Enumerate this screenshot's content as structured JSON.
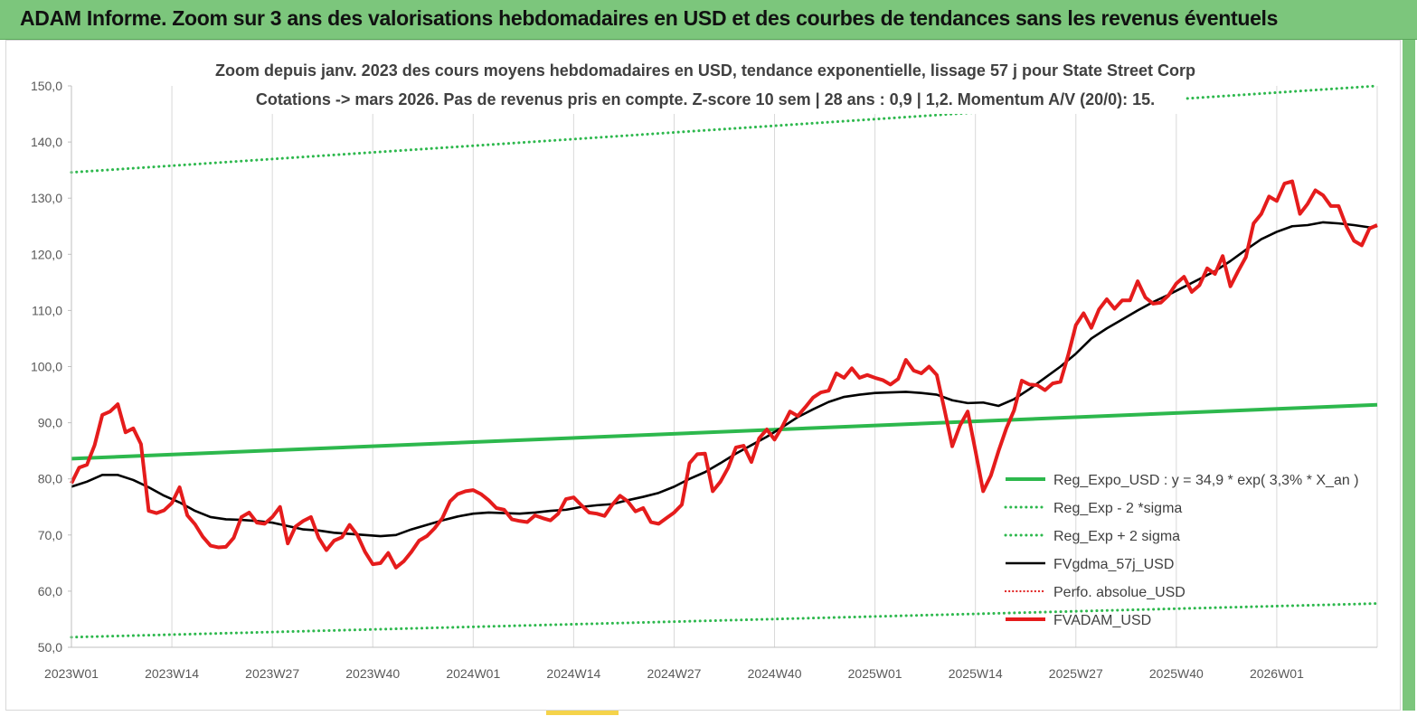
{
  "banner": {
    "title": "ADAM Informe. Zoom sur 3 ans des valorisations hebdomadaires en USD et des courbes de tendances sans les revenus éventuels",
    "background": "#7cc67c"
  },
  "chart_data": {
    "type": "line",
    "subtitle_line1": "Zoom depuis janv. 2023 des cours moyens hebdomadaires en USD, tendance exponentielle, lissage 57 j pour State Street Corp",
    "subtitle_line2": "Cotations -> mars 2026. Pas de revenus pris en compte. Z-score 10 sem  | 28 ans : 0,9 | 1,2. Momentum A/V (20/0): 15.",
    "xlabel": "",
    "ylabel": "",
    "ylim": [
      50,
      150
    ],
    "yticks": [
      "50,0",
      "60,0",
      "70,0",
      "80,0",
      "90,0",
      "100,0",
      "110,0",
      "120,0",
      "130,0",
      "140,0",
      "150,0"
    ],
    "xticks": [
      {
        "label": "2023W01",
        "week": 0
      },
      {
        "label": "2023W14",
        "week": 13
      },
      {
        "label": "2023W27",
        "week": 26
      },
      {
        "label": "2023W40",
        "week": 39
      },
      {
        "label": "2024W01",
        "week": 52
      },
      {
        "label": "2024W14",
        "week": 65
      },
      {
        "label": "2024W27",
        "week": 78
      },
      {
        "label": "2024W40",
        "week": 91
      },
      {
        "label": "2025W01",
        "week": 104
      },
      {
        "label": "2025W14",
        "week": 117
      },
      {
        "label": "2025W27",
        "week": 130
      },
      {
        "label": "2025W40",
        "week": 143
      },
      {
        "label": "2026W01",
        "week": 156
      }
    ],
    "x_max_week": 169,
    "grid": "vertical",
    "legend_placement": "bottom-right",
    "series": [
      {
        "name": "Reg_Expo_USD : y = 34,9 * exp( 3,3% *  X_an )",
        "color": "#2db84d",
        "style": "solid-thick",
        "points": [
          [
            0,
            83.6
          ],
          [
            169,
            93.2
          ]
        ]
      },
      {
        "name": "Reg_Exp - 2 *sigma",
        "color": "#2db84d",
        "style": "dotted",
        "points": [
          [
            0,
            51.8
          ],
          [
            169,
            57.8
          ]
        ]
      },
      {
        "name": "Reg_Exp + 2 sigma",
        "color": "#2db84d",
        "style": "dotted",
        "points": [
          [
            0,
            134.6
          ],
          [
            169,
            150.0
          ]
        ]
      },
      {
        "name": "FVgdma_57j_USD",
        "color": "#000000",
        "style": "solid",
        "points": [
          [
            0,
            78.6
          ],
          [
            2,
            79.5
          ],
          [
            4,
            80.7
          ],
          [
            6,
            80.7
          ],
          [
            8,
            79.8
          ],
          [
            10,
            78.5
          ],
          [
            12,
            77.0
          ],
          [
            14,
            75.8
          ],
          [
            16,
            74.3
          ],
          [
            18,
            73.2
          ],
          [
            20,
            72.8
          ],
          [
            22,
            72.7
          ],
          [
            24,
            72.5
          ],
          [
            26,
            72.2
          ],
          [
            28,
            71.6
          ],
          [
            30,
            71.0
          ],
          [
            32,
            70.8
          ],
          [
            34,
            70.4
          ],
          [
            36,
            70.2
          ],
          [
            38,
            70.0
          ],
          [
            40,
            69.8
          ],
          [
            42,
            70.0
          ],
          [
            44,
            71.0
          ],
          [
            46,
            71.8
          ],
          [
            48,
            72.6
          ],
          [
            50,
            73.3
          ],
          [
            52,
            73.8
          ],
          [
            54,
            74.0
          ],
          [
            56,
            73.9
          ],
          [
            58,
            73.8
          ],
          [
            60,
            74.0
          ],
          [
            62,
            74.3
          ],
          [
            64,
            74.5
          ],
          [
            66,
            75.0
          ],
          [
            68,
            75.3
          ],
          [
            70,
            75.5
          ],
          [
            72,
            76.2
          ],
          [
            74,
            76.8
          ],
          [
            76,
            77.5
          ],
          [
            78,
            78.6
          ],
          [
            80,
            80.0
          ],
          [
            82,
            81.2
          ],
          [
            84,
            82.8
          ],
          [
            86,
            84.5
          ],
          [
            88,
            86.0
          ],
          [
            90,
            87.5
          ],
          [
            92,
            89.2
          ],
          [
            94,
            91.0
          ],
          [
            96,
            92.4
          ],
          [
            98,
            93.7
          ],
          [
            100,
            94.6
          ],
          [
            102,
            95.0
          ],
          [
            104,
            95.3
          ],
          [
            106,
            95.4
          ],
          [
            108,
            95.5
          ],
          [
            110,
            95.3
          ],
          [
            112,
            95.0
          ],
          [
            114,
            94.0
          ],
          [
            116,
            93.5
          ],
          [
            118,
            93.6
          ],
          [
            120,
            93.0
          ],
          [
            122,
            94.2
          ],
          [
            124,
            96.0
          ],
          [
            126,
            98.0
          ],
          [
            128,
            100.0
          ],
          [
            130,
            102.3
          ],
          [
            132,
            105.0
          ],
          [
            134,
            106.8
          ],
          [
            136,
            108.4
          ],
          [
            138,
            110.0
          ],
          [
            140,
            111.5
          ],
          [
            142,
            112.8
          ],
          [
            144,
            114.2
          ],
          [
            146,
            115.6
          ],
          [
            148,
            117.0
          ],
          [
            150,
            118.8
          ],
          [
            152,
            120.8
          ],
          [
            154,
            122.7
          ],
          [
            156,
            124.0
          ],
          [
            158,
            125.0
          ],
          [
            160,
            125.2
          ],
          [
            162,
            125.7
          ],
          [
            164,
            125.5
          ],
          [
            166,
            125.2
          ],
          [
            168,
            124.8
          ],
          [
            169,
            125.0
          ]
        ]
      },
      {
        "name": "Perfo. absolue_USD",
        "color": "#e02020",
        "style": "dotted",
        "points": []
      },
      {
        "name": "FVADAM_USD",
        "color": "#e51c1c",
        "style": "solid-thick",
        "points": [
          [
            0,
            79.2
          ],
          [
            1,
            82.0
          ],
          [
            2,
            82.5
          ],
          [
            3,
            86.0
          ],
          [
            4,
            91.4
          ],
          [
            5,
            92.0
          ],
          [
            6,
            93.3
          ],
          [
            7,
            88.3
          ],
          [
            8,
            89.0
          ],
          [
            9,
            86.2
          ],
          [
            10,
            74.3
          ],
          [
            11,
            73.9
          ],
          [
            12,
            74.4
          ],
          [
            13,
            75.7
          ],
          [
            14,
            78.5
          ],
          [
            15,
            73.5
          ],
          [
            16,
            71.9
          ],
          [
            17,
            69.7
          ],
          [
            18,
            68.1
          ],
          [
            19,
            67.8
          ],
          [
            20,
            67.9
          ],
          [
            21,
            69.5
          ],
          [
            22,
            73.2
          ],
          [
            23,
            74.0
          ],
          [
            24,
            72.2
          ],
          [
            25,
            72.0
          ],
          [
            26,
            73.2
          ],
          [
            27,
            75.0
          ],
          [
            28,
            68.5
          ],
          [
            29,
            71.5
          ],
          [
            30,
            72.5
          ],
          [
            31,
            73.2
          ],
          [
            32,
            69.5
          ],
          [
            33,
            67.3
          ],
          [
            34,
            69.0
          ],
          [
            35,
            69.6
          ],
          [
            36,
            71.8
          ],
          [
            37,
            70.0
          ],
          [
            38,
            67.0
          ],
          [
            39,
            64.8
          ],
          [
            40,
            65.0
          ],
          [
            41,
            66.8
          ],
          [
            42,
            64.2
          ],
          [
            43,
            65.3
          ],
          [
            44,
            67.0
          ],
          [
            45,
            69.0
          ],
          [
            46,
            69.8
          ],
          [
            47,
            71.2
          ],
          [
            48,
            73.0
          ],
          [
            49,
            76.0
          ],
          [
            50,
            77.3
          ],
          [
            51,
            77.8
          ],
          [
            52,
            78.0
          ],
          [
            53,
            77.3
          ],
          [
            54,
            76.2
          ],
          [
            55,
            74.8
          ],
          [
            56,
            74.5
          ],
          [
            57,
            72.8
          ],
          [
            58,
            72.5
          ],
          [
            59,
            72.3
          ],
          [
            60,
            73.5
          ],
          [
            61,
            73.0
          ],
          [
            62,
            72.6
          ],
          [
            63,
            73.8
          ],
          [
            64,
            76.4
          ],
          [
            65,
            76.7
          ],
          [
            66,
            75.3
          ],
          [
            67,
            74.0
          ],
          [
            68,
            73.8
          ],
          [
            69,
            73.4
          ],
          [
            70,
            75.4
          ],
          [
            71,
            77.0
          ],
          [
            72,
            76.0
          ],
          [
            73,
            74.2
          ],
          [
            74,
            74.8
          ],
          [
            75,
            72.3
          ],
          [
            76,
            72.0
          ],
          [
            77,
            73.0
          ],
          [
            78,
            74.0
          ],
          [
            79,
            75.4
          ],
          [
            80,
            82.8
          ],
          [
            81,
            84.4
          ],
          [
            82,
            84.5
          ],
          [
            83,
            77.8
          ],
          [
            84,
            79.5
          ],
          [
            85,
            82.0
          ],
          [
            86,
            85.6
          ],
          [
            87,
            85.9
          ],
          [
            88,
            83.0
          ],
          [
            89,
            87.2
          ],
          [
            90,
            88.8
          ],
          [
            91,
            87.0
          ],
          [
            92,
            89.3
          ],
          [
            93,
            92.0
          ],
          [
            94,
            91.2
          ],
          [
            95,
            92.8
          ],
          [
            96,
            94.5
          ],
          [
            97,
            95.4
          ],
          [
            98,
            95.7
          ],
          [
            99,
            98.8
          ],
          [
            100,
            98.0
          ],
          [
            101,
            99.7
          ],
          [
            102,
            98.0
          ],
          [
            103,
            98.5
          ],
          [
            104,
            98.0
          ],
          [
            105,
            97.6
          ],
          [
            106,
            96.8
          ],
          [
            107,
            97.8
          ],
          [
            108,
            101.2
          ],
          [
            109,
            99.3
          ],
          [
            110,
            98.8
          ],
          [
            111,
            100.0
          ],
          [
            112,
            98.5
          ],
          [
            113,
            92.3
          ],
          [
            114,
            85.8
          ],
          [
            115,
            89.5
          ],
          [
            116,
            92.0
          ],
          [
            117,
            85.0
          ],
          [
            118,
            77.8
          ],
          [
            119,
            80.6
          ],
          [
            120,
            85.0
          ],
          [
            121,
            89.0
          ],
          [
            122,
            92.2
          ],
          [
            123,
            97.5
          ],
          [
            124,
            96.8
          ],
          [
            125,
            96.7
          ],
          [
            126,
            95.8
          ],
          [
            127,
            97.0
          ],
          [
            128,
            97.3
          ],
          [
            129,
            102.0
          ],
          [
            130,
            107.4
          ],
          [
            131,
            109.5
          ],
          [
            132,
            106.9
          ],
          [
            133,
            110.2
          ],
          [
            134,
            112.0
          ],
          [
            135,
            110.3
          ],
          [
            136,
            111.8
          ],
          [
            137,
            111.8
          ],
          [
            138,
            115.2
          ],
          [
            139,
            112.3
          ],
          [
            140,
            111.2
          ],
          [
            141,
            111.4
          ],
          [
            142,
            112.7
          ],
          [
            143,
            114.8
          ],
          [
            144,
            116.0
          ],
          [
            145,
            113.3
          ],
          [
            146,
            114.5
          ],
          [
            147,
            117.5
          ],
          [
            148,
            116.5
          ],
          [
            149,
            119.7
          ],
          [
            150,
            114.3
          ],
          [
            151,
            117.0
          ],
          [
            152,
            119.5
          ],
          [
            153,
            125.5
          ],
          [
            154,
            127.2
          ],
          [
            155,
            130.3
          ],
          [
            156,
            129.5
          ],
          [
            157,
            132.6
          ],
          [
            158,
            133.0
          ],
          [
            159,
            127.2
          ],
          [
            160,
            129.0
          ],
          [
            161,
            131.4
          ],
          [
            162,
            130.5
          ],
          [
            163,
            128.6
          ],
          [
            164,
            128.6
          ],
          [
            165,
            125.0
          ],
          [
            166,
            122.4
          ],
          [
            167,
            121.6
          ],
          [
            168,
            124.6
          ],
          [
            169,
            125.2
          ]
        ]
      }
    ]
  }
}
